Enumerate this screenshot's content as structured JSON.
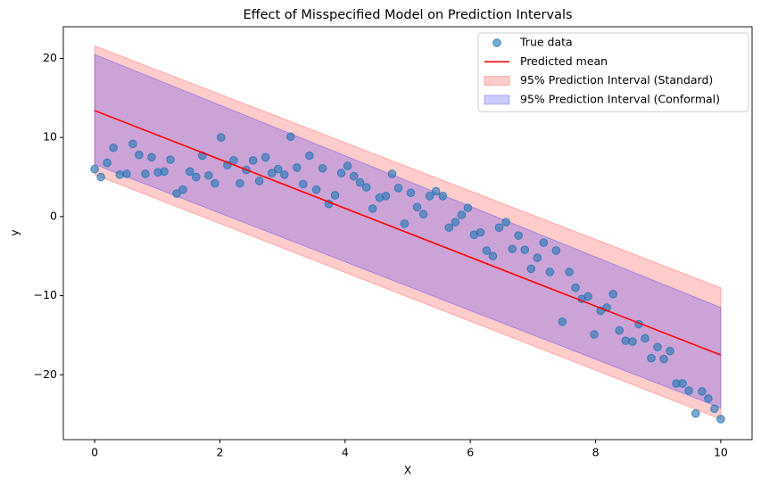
{
  "chart_data": {
    "type": "scatter",
    "title": "Effect of Misspecified Model on Prediction Intervals",
    "xlabel": "X",
    "ylabel": "y",
    "xlim": [
      -0.5,
      10.5
    ],
    "ylim": [
      -28.2,
      24
    ],
    "xticks": [
      0,
      2,
      4,
      6,
      8,
      10
    ],
    "yticks": [
      {
        "value": -20,
        "label": "−20"
      },
      {
        "value": -10,
        "label": "−10"
      },
      0,
      10,
      20
    ],
    "legend": "upper right",
    "series": [
      {
        "name": "True data",
        "type": "scatter",
        "color": "#1f77b4",
        "x": [
          0,
          0.1,
          0.2,
          0.3,
          0.4,
          0.51,
          0.61,
          0.71,
          0.81,
          0.91,
          1.01,
          1.11,
          1.21,
          1.31,
          1.41,
          1.52,
          1.62,
          1.72,
          1.82,
          1.92,
          2.02,
          2.12,
          2.22,
          2.32,
          2.42,
          2.53,
          2.63,
          2.73,
          2.83,
          2.93,
          3.03,
          3.13,
          3.23,
          3.33,
          3.43,
          3.54,
          3.64,
          3.74,
          3.84,
          3.94,
          4.04,
          4.14,
          4.24,
          4.34,
          4.44,
          4.55,
          4.65,
          4.75,
          4.85,
          4.95,
          5.05,
          5.15,
          5.25,
          5.35,
          5.45,
          5.56,
          5.66,
          5.76,
          5.86,
          5.96,
          6.06,
          6.16,
          6.26,
          6.36,
          6.46,
          6.57,
          6.67,
          6.77,
          6.87,
          6.97,
          7.07,
          7.17,
          7.27,
          7.37,
          7.47,
          7.58,
          7.68,
          7.78,
          7.88,
          7.98,
          8.08,
          8.18,
          8.28,
          8.38,
          8.48,
          8.59,
          8.69,
          8.79,
          8.89,
          8.99,
          9.09,
          9.19,
          9.29,
          9.39,
          9.49,
          9.6,
          9.7,
          9.8,
          9.9,
          10
        ],
        "values": [
          6.0,
          5.0,
          6.8,
          8.7,
          5.3,
          5.4,
          9.2,
          7.8,
          5.4,
          7.5,
          5.6,
          5.7,
          7.2,
          2.9,
          3.4,
          5.7,
          5.0,
          7.7,
          5.2,
          4.2,
          10.0,
          6.5,
          7.1,
          4.2,
          5.9,
          7.1,
          4.5,
          7.5,
          5.5,
          6.0,
          5.3,
          10.1,
          6.2,
          4.1,
          7.7,
          3.4,
          6.1,
          1.6,
          2.7,
          5.5,
          6.4,
          5.1,
          4.3,
          3.7,
          1.0,
          2.4,
          2.6,
          5.4,
          3.6,
          -0.9,
          3.0,
          1.2,
          0.3,
          2.6,
          3.2,
          2.6,
          -1.4,
          -0.7,
          0.2,
          1.1,
          -2.3,
          -2.0,
          -4.3,
          -5.0,
          -1.4,
          -0.7,
          -4.1,
          -2.4,
          -4.2,
          -6.6,
          -5.2,
          -3.3,
          -7.0,
          -4.3,
          -13.3,
          -7.0,
          -9.0,
          -10.4,
          -10.1,
          -14.9,
          -11.9,
          -11.5,
          -9.8,
          -14.4,
          -15.7,
          -15.8,
          -13.6,
          -15.4,
          -17.9,
          -16.5,
          -18.0,
          -17.0,
          -21.1,
          -21.1,
          -22.0,
          -24.9,
          -22.1,
          -23.0,
          -24.3,
          -25.6
        ]
      },
      {
        "name": "Predicted mean",
        "type": "line",
        "color": "#ff0000",
        "x": [
          0,
          10
        ],
        "values": [
          13.4,
          -17.5
        ]
      },
      {
        "name": "95% Prediction Interval (Standard)",
        "type": "band",
        "color": "#ff0000",
        "x": [
          0,
          10
        ],
        "lower": [
          5.3,
          -25.6
        ],
        "upper": [
          21.6,
          -9.0
        ]
      },
      {
        "name": "95% Prediction Interval (Conformal)",
        "type": "band",
        "color": "#0000ff",
        "x": [
          0,
          10
        ],
        "lower": [
          6.6,
          -24.2
        ],
        "upper": [
          20.5,
          -11.5
        ]
      }
    ]
  }
}
